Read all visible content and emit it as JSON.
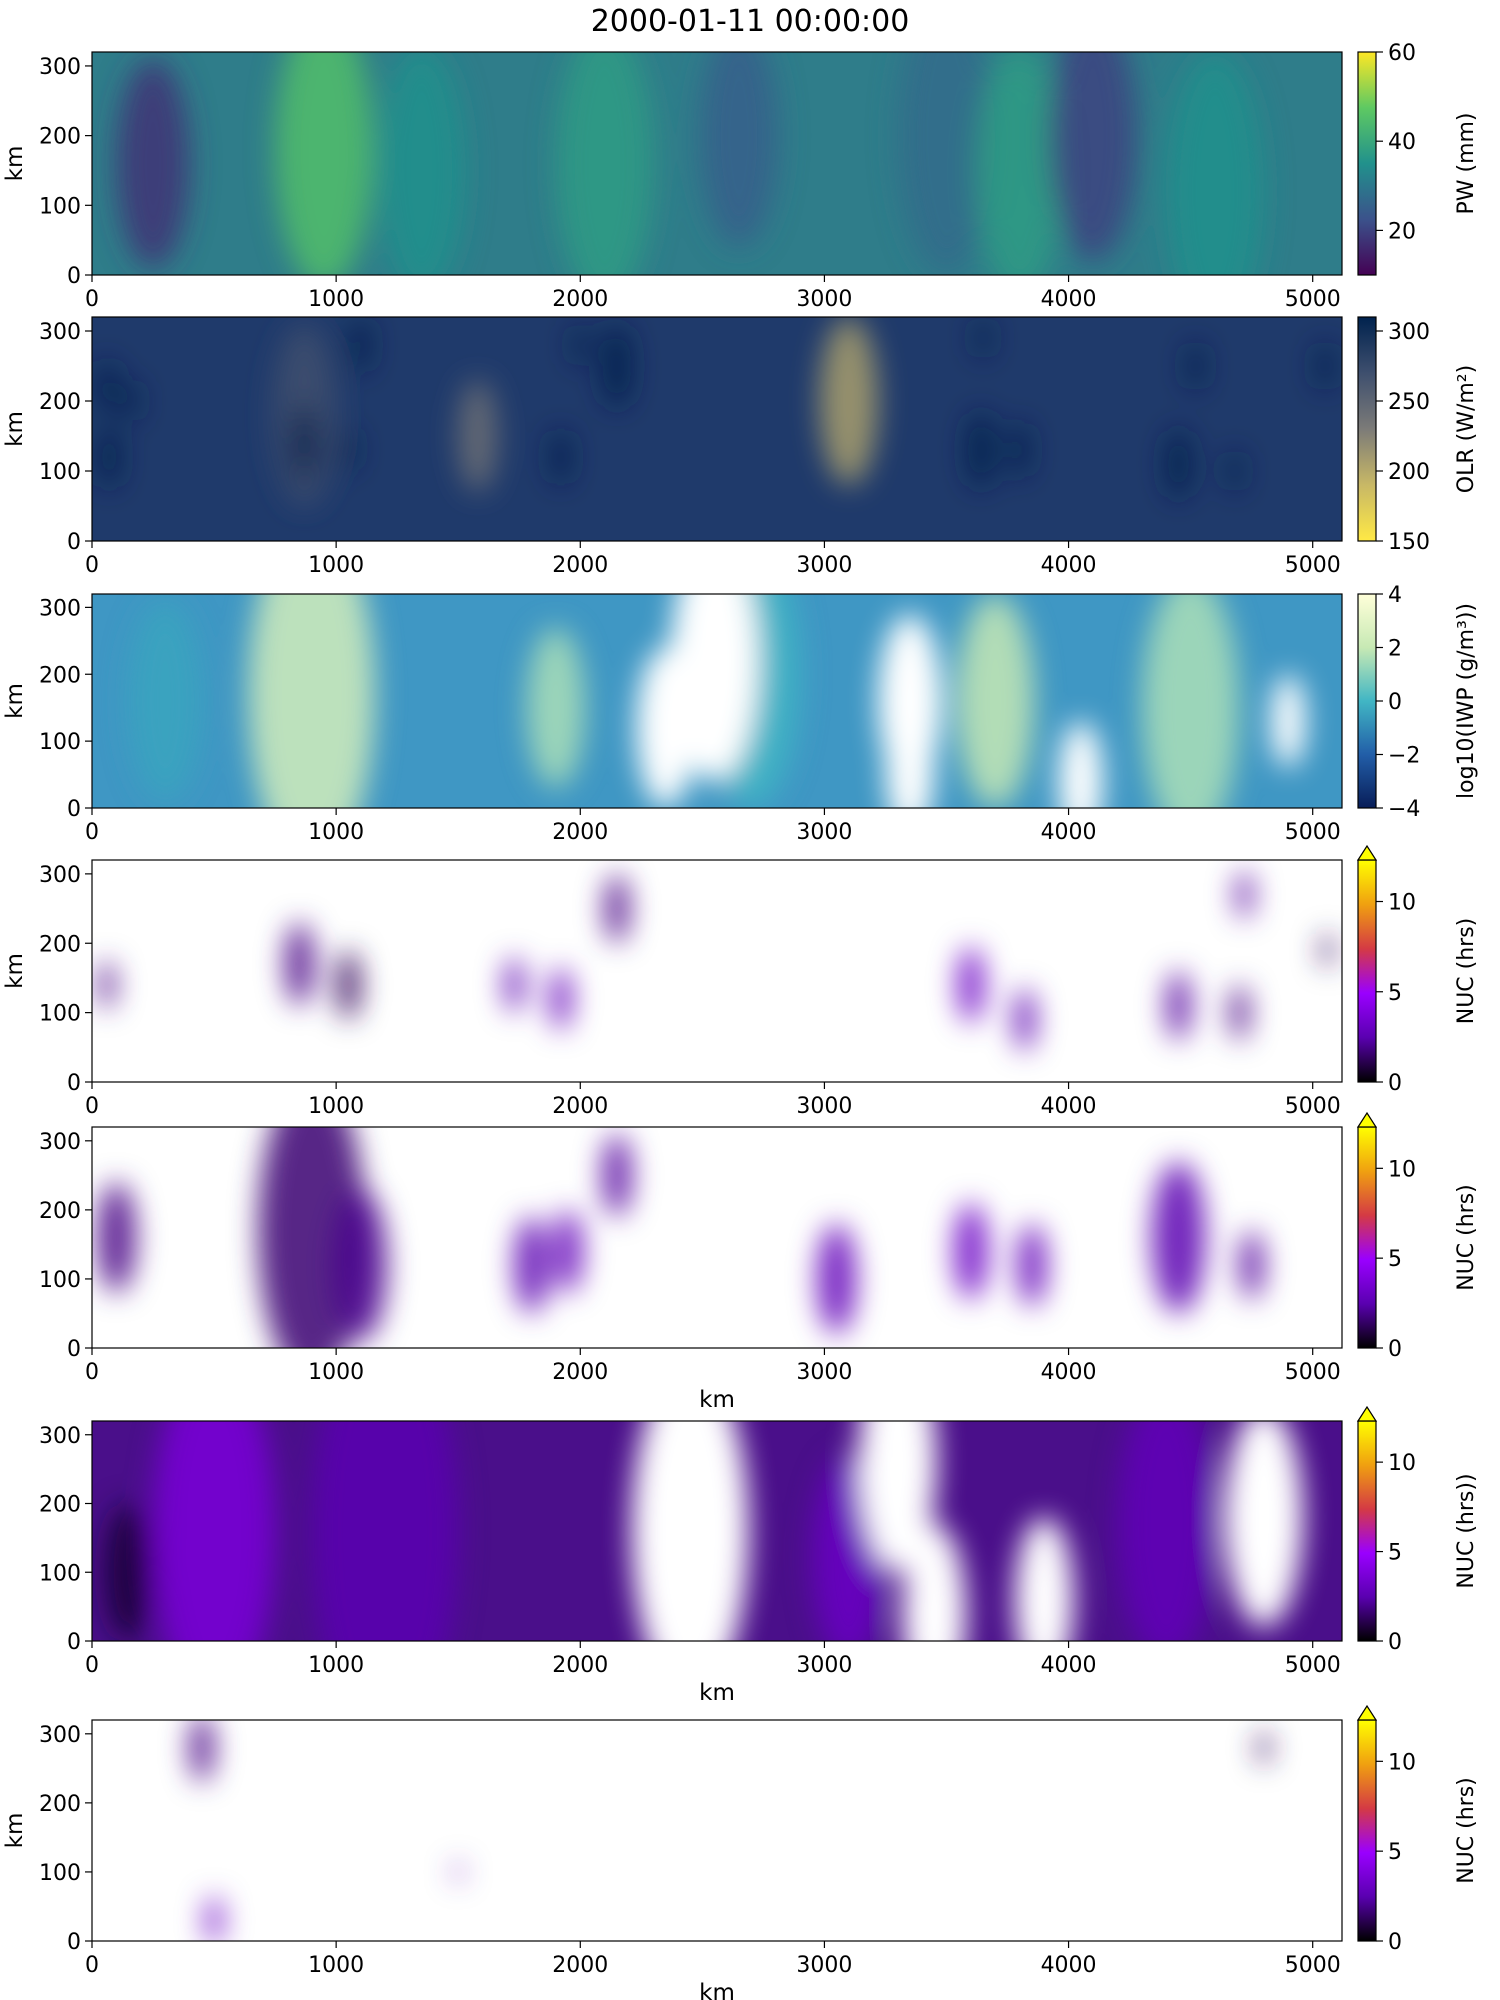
{
  "figure_title": "2000-01-11 00:00:00",
  "chart_data": [
    {
      "type": "heatmap",
      "variable": "PW",
      "xlim": [
        0,
        5120
      ],
      "ylim": [
        0,
        320
      ],
      "xticks": [
        0,
        1000,
        2000,
        3000,
        4000,
        5000
      ],
      "yticks": [
        0,
        100,
        200,
        300
      ],
      "xlabel": "",
      "ylabel": "km",
      "colorbar": {
        "label": "PW (mm)",
        "cmap": "viridis",
        "range": [
          10,
          60
        ],
        "ticks": [
          20,
          40,
          60
        ],
        "reversed": false,
        "extend_max": false
      },
      "background": "#2f7d8a",
      "blobs": [
        {
          "x": 250,
          "y": 160,
          "r": 150,
          "v": 0.15
        },
        {
          "x": 950,
          "y": 180,
          "r": 200,
          "v": 0.7
        },
        {
          "x": 1350,
          "y": 150,
          "r": 180,
          "v": 0.5
        },
        {
          "x": 2100,
          "y": 160,
          "r": 200,
          "v": 0.55
        },
        {
          "x": 2650,
          "y": 200,
          "r": 160,
          "v": 0.3
        },
        {
          "x": 3500,
          "y": 200,
          "r": 200,
          "v": 0.35
        },
        {
          "x": 3800,
          "y": 150,
          "r": 180,
          "v": 0.55
        },
        {
          "x": 4600,
          "y": 120,
          "r": 200,
          "v": 0.5
        },
        {
          "x": 4100,
          "y": 200,
          "r": 180,
          "v": 0.2
        }
      ]
    },
    {
      "type": "heatmap",
      "variable": "OLR",
      "xlim": [
        0,
        5120
      ],
      "ylim": [
        0,
        320
      ],
      "xticks": [
        0,
        1000,
        2000,
        3000,
        4000,
        5000
      ],
      "yticks": [
        0,
        100,
        200,
        300
      ],
      "xlabel": "",
      "ylabel": "km",
      "colorbar": {
        "label": "OLR (W/m²)",
        "cmap": "cividis_r",
        "range": [
          150,
          310
        ],
        "ticks": [
          150,
          200,
          250,
          300
        ],
        "reversed": true,
        "extend_max": false
      },
      "background": "#1f3a6b",
      "blobs": [
        {
          "x": 60,
          "y": 220,
          "r": 40,
          "v": 1
        },
        {
          "x": 70,
          "y": 120,
          "r": 45,
          "v": 1
        },
        {
          "x": 160,
          "y": 200,
          "r": 30,
          "v": 1
        },
        {
          "x": 870,
          "y": 180,
          "r": 130,
          "v": 0.75
        },
        {
          "x": 870,
          "y": 140,
          "r": 55,
          "v": 1
        },
        {
          "x": 1100,
          "y": 280,
          "r": 40,
          "v": 1
        },
        {
          "x": 1050,
          "y": 130,
          "r": 30,
          "v": 1
        },
        {
          "x": 1580,
          "y": 150,
          "r": 80,
          "v": 0.55
        },
        {
          "x": 1920,
          "y": 120,
          "r": 40,
          "v": 1
        },
        {
          "x": 2150,
          "y": 250,
          "r": 60,
          "v": 1
        },
        {
          "x": 2000,
          "y": 280,
          "r": 30,
          "v": 1
        },
        {
          "x": 3100,
          "y": 200,
          "r": 120,
          "v": 0.35
        },
        {
          "x": 3640,
          "y": 130,
          "r": 55,
          "v": 1
        },
        {
          "x": 3650,
          "y": 290,
          "r": 30,
          "v": 1
        },
        {
          "x": 3800,
          "y": 130,
          "r": 40,
          "v": 1
        },
        {
          "x": 4450,
          "y": 110,
          "r": 50,
          "v": 1
        },
        {
          "x": 4520,
          "y": 250,
          "r": 35,
          "v": 1
        },
        {
          "x": 4680,
          "y": 100,
          "r": 30,
          "v": 1
        },
        {
          "x": 5050,
          "y": 250,
          "r": 35,
          "v": 1
        }
      ]
    },
    {
      "type": "heatmap",
      "variable": "log10(IWP)",
      "xlim": [
        0,
        5120
      ],
      "ylim": [
        0,
        320
      ],
      "xticks": [
        0,
        1000,
        2000,
        3000,
        4000,
        5000
      ],
      "yticks": [
        0,
        100,
        200,
        300
      ],
      "xlabel": "",
      "ylabel": "km",
      "colorbar": {
        "label": "log10(IWP (g/m³))",
        "cmap": "YlGnBu_r",
        "range": [
          -4,
          4
        ],
        "ticks": [
          -4,
          -2,
          0,
          2,
          4
        ],
        "reversed": true,
        "extend_max": false
      },
      "background": "#3f97c4",
      "blobs": [
        {
          "x": 900,
          "y": 170,
          "r": 260,
          "v": 0.8
        },
        {
          "x": 300,
          "y": 160,
          "r": 150,
          "v": 0.45
        },
        {
          "x": 1900,
          "y": 150,
          "r": 120,
          "v": 0.7
        },
        {
          "x": 2700,
          "y": 200,
          "r": 200,
          "v": 0.5
        },
        {
          "x": 3700,
          "y": 160,
          "r": 160,
          "v": 0.75
        },
        {
          "x": 4500,
          "y": 150,
          "r": 200,
          "v": 0.7
        }
      ],
      "gaps": [
        {
          "x": 2550,
          "y": 220,
          "r": 180
        },
        {
          "x": 2350,
          "y": 120,
          "r": 120
        },
        {
          "x": 3350,
          "y": 160,
          "r": 130
        },
        {
          "x": 3350,
          "y": 60,
          "r": 100
        },
        {
          "x": 4050,
          "y": 40,
          "r": 90
        },
        {
          "x": 4900,
          "y": 130,
          "r": 70
        }
      ]
    },
    {
      "type": "heatmap",
      "variable": "NUC",
      "xlim": [
        0,
        5120
      ],
      "ylim": [
        0,
        320
      ],
      "xticks": [
        0,
        1000,
        2000,
        3000,
        4000,
        5000
      ],
      "yticks": [
        0,
        100,
        200,
        300
      ],
      "xlabel": "",
      "ylabel": "km",
      "colorbar": {
        "label": "NUC (hrs)",
        "cmap": "gnuplot",
        "range": [
          0,
          12.3
        ],
        "ticks": [
          0,
          5,
          10
        ],
        "reversed": false,
        "extend_max": true
      },
      "background": "#ffffff",
      "blobs": [
        {
          "x": 60,
          "y": 140,
          "r": 35,
          "v": 0.15
        },
        {
          "x": 850,
          "y": 170,
          "r": 60,
          "v": 0.15
        },
        {
          "x": 1050,
          "y": 140,
          "r": 50,
          "v": 0.1
        },
        {
          "x": 1730,
          "y": 140,
          "r": 40,
          "v": 0.2
        },
        {
          "x": 1920,
          "y": 120,
          "r": 45,
          "v": 0.22
        },
        {
          "x": 2150,
          "y": 250,
          "r": 50,
          "v": 0.15
        },
        {
          "x": 3600,
          "y": 140,
          "r": 55,
          "v": 0.25
        },
        {
          "x": 3820,
          "y": 90,
          "r": 45,
          "v": 0.2
        },
        {
          "x": 4450,
          "y": 110,
          "r": 50,
          "v": 0.18
        },
        {
          "x": 4700,
          "y": 100,
          "r": 40,
          "v": 0.15
        },
        {
          "x": 4720,
          "y": 270,
          "r": 35,
          "v": 0.18
        },
        {
          "x": 5060,
          "y": 190,
          "r": 25,
          "v": 0.1
        }
      ]
    },
    {
      "type": "heatmap",
      "variable": "NUC",
      "xlim": [
        0,
        5120
      ],
      "ylim": [
        0,
        320
      ],
      "xticks": [
        0,
        1000,
        2000,
        3000,
        4000,
        5000
      ],
      "yticks": [
        0,
        100,
        200,
        300
      ],
      "xlabel": "km",
      "ylabel": "",
      "colorbar": {
        "label": "NUC (hrs)",
        "cmap": "gnuplot",
        "range": [
          0,
          12.3
        ],
        "ticks": [
          0,
          5,
          10
        ],
        "reversed": false,
        "extend_max": true
      },
      "background": "#ffffff",
      "blobs": [
        {
          "x": 100,
          "y": 160,
          "r": 80,
          "v": 0.15
        },
        {
          "x": 900,
          "y": 170,
          "r": 220,
          "v": 0.13
        },
        {
          "x": 1100,
          "y": 120,
          "r": 110,
          "v": 0.16
        },
        {
          "x": 1800,
          "y": 120,
          "r": 70,
          "v": 0.2
        },
        {
          "x": 1950,
          "y": 140,
          "r": 60,
          "v": 0.22
        },
        {
          "x": 2150,
          "y": 250,
          "r": 60,
          "v": 0.18
        },
        {
          "x": 3050,
          "y": 100,
          "r": 80,
          "v": 0.22
        },
        {
          "x": 3600,
          "y": 140,
          "r": 70,
          "v": 0.25
        },
        {
          "x": 3850,
          "y": 120,
          "r": 60,
          "v": 0.22
        },
        {
          "x": 4450,
          "y": 160,
          "r": 110,
          "v": 0.2
        },
        {
          "x": 4750,
          "y": 120,
          "r": 50,
          "v": 0.18
        }
      ]
    },
    {
      "type": "heatmap",
      "variable": "NUC",
      "xlim": [
        0,
        5120
      ],
      "ylim": [
        0,
        320
      ],
      "xticks": [
        0,
        1000,
        2000,
        3000,
        4000,
        5000
      ],
      "yticks": [
        0,
        100,
        200,
        300
      ],
      "xlabel": "km",
      "ylabel": "",
      "colorbar": {
        "label": "NUC (hrs))",
        "cmap": "gnuplot",
        "range": [
          0,
          12.3
        ],
        "ticks": [
          0,
          5,
          10
        ],
        "reversed": false,
        "extend_max": true
      },
      "background": "#4a0f8a",
      "blobs": [
        {
          "x": 500,
          "y": 160,
          "r": 250,
          "v": 0.3
        },
        {
          "x": 1200,
          "y": 160,
          "r": 300,
          "v": 0.2
        },
        {
          "x": 3100,
          "y": 120,
          "r": 150,
          "v": 0.25
        },
        {
          "x": 4400,
          "y": 170,
          "r": 200,
          "v": 0.22
        },
        {
          "x": 150,
          "y": 100,
          "r": 100,
          "v": 0.06
        }
      ],
      "gaps": [
        {
          "x": 2450,
          "y": 160,
          "r": 240
        },
        {
          "x": 3300,
          "y": 260,
          "r": 160
        },
        {
          "x": 3450,
          "y": 40,
          "r": 130
        },
        {
          "x": 3900,
          "y": 60,
          "r": 120
        },
        {
          "x": 4800,
          "y": 180,
          "r": 160
        }
      ]
    },
    {
      "type": "heatmap",
      "variable": "NUC",
      "xlim": [
        0,
        5120
      ],
      "ylim": [
        0,
        320
      ],
      "xticks": [
        0,
        1000,
        2000,
        3000,
        4000,
        5000
      ],
      "yticks": [
        0,
        100,
        200,
        300
      ],
      "xlabel": "km",
      "ylabel": "km",
      "colorbar": {
        "label": "NUC (hrs)",
        "cmap": "gnuplot",
        "range": [
          0,
          12.3
        ],
        "ticks": [
          0,
          5,
          10
        ],
        "reversed": false,
        "extend_max": true
      },
      "background": "#ffffff",
      "blobs": [
        {
          "x": 450,
          "y": 280,
          "r": 50,
          "v": 0.15
        },
        {
          "x": 500,
          "y": 30,
          "r": 35,
          "v": 0.25
        },
        {
          "x": 4800,
          "y": 280,
          "r": 25,
          "v": 0.1
        },
        {
          "x": 1500,
          "y": 100,
          "r": 15,
          "v": 0.2
        }
      ]
    }
  ]
}
